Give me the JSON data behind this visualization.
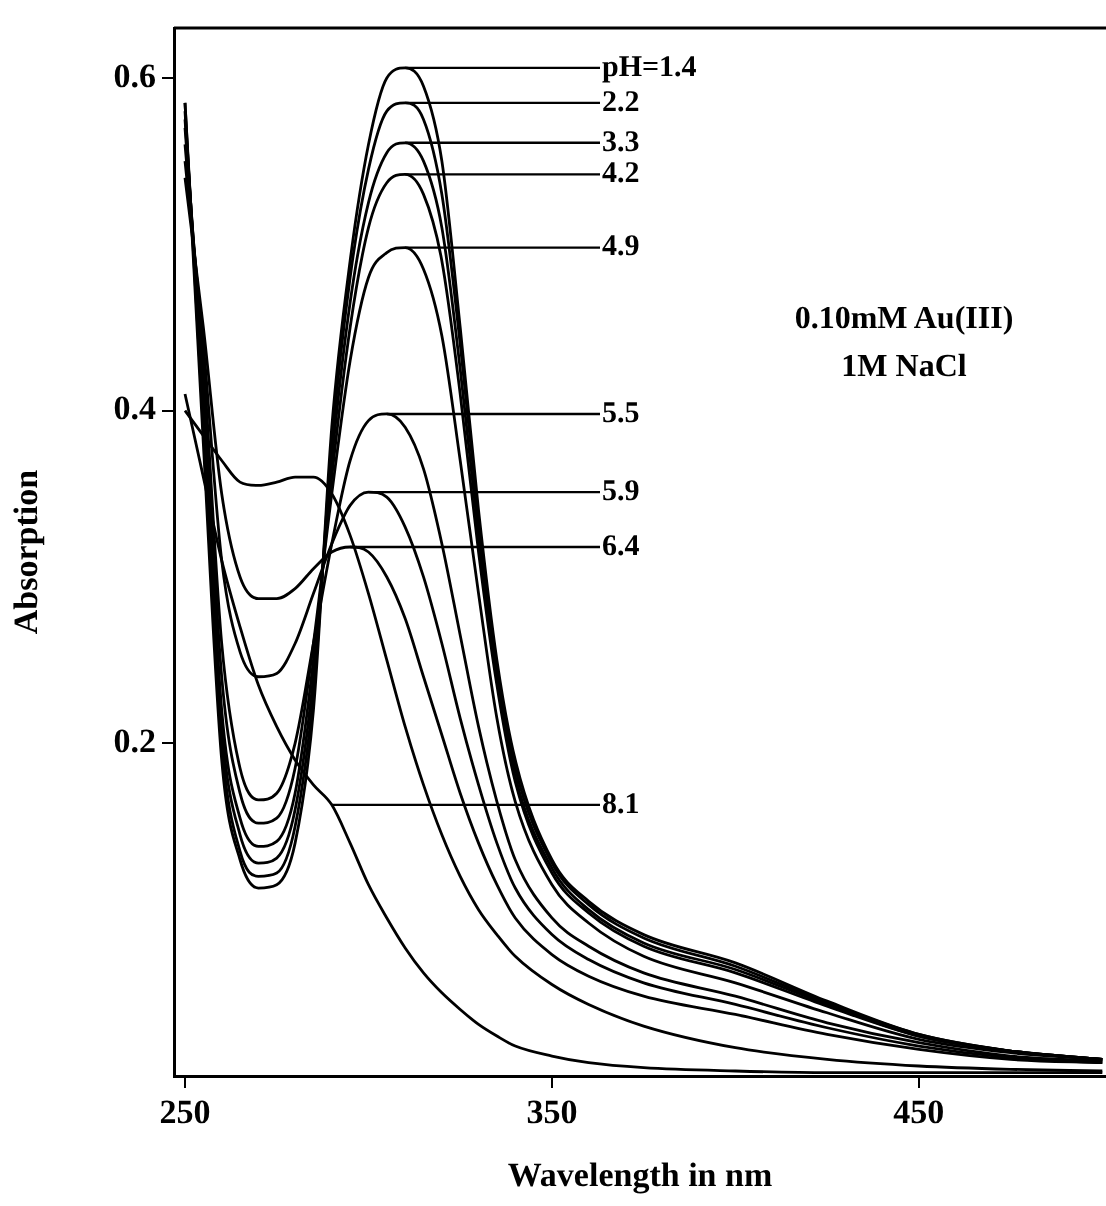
{
  "chart_data": {
    "type": "line",
    "xlabel": "Wavelength in nm",
    "ylabel": "Absorption",
    "x": [
      250,
      255,
      260,
      265,
      270,
      275,
      280,
      285,
      290,
      295,
      300,
      305,
      310,
      315,
      320,
      325,
      330,
      335,
      340,
      350,
      360,
      375,
      400,
      425,
      450,
      475,
      500
    ],
    "xlim": [
      247,
      501
    ],
    "ylim": [
      0,
      0.63
    ],
    "xticks": [
      250,
      350,
      450
    ],
    "yticks": [
      0.2,
      0.4,
      0.6
    ],
    "grid": false,
    "legend": false,
    "marker": "none",
    "line_style": "solid",
    "series": [
      {
        "color": "#000000",
        "values": [
          0.585,
          0.38,
          0.19,
          0.13,
          0.113,
          0.115,
          0.14,
          0.22,
          0.39,
          0.49,
          0.56,
          0.6,
          0.606,
          0.595,
          0.55,
          0.45,
          0.34,
          0.25,
          0.19,
          0.13,
          0.105,
          0.085,
          0.068,
          0.045,
          0.025,
          0.015,
          0.01
        ]
      },
      {
        "color": "#000000",
        "values": [
          0.585,
          0.39,
          0.2,
          0.135,
          0.12,
          0.122,
          0.15,
          0.23,
          0.38,
          0.48,
          0.545,
          0.58,
          0.585,
          0.575,
          0.53,
          0.44,
          0.335,
          0.245,
          0.185,
          0.128,
          0.103,
          0.083,
          0.066,
          0.044,
          0.025,
          0.015,
          0.01
        ]
      },
      {
        "color": "#000000",
        "values": [
          0.58,
          0.4,
          0.21,
          0.145,
          0.128,
          0.131,
          0.16,
          0.24,
          0.37,
          0.465,
          0.525,
          0.555,
          0.561,
          0.55,
          0.51,
          0.425,
          0.325,
          0.24,
          0.18,
          0.125,
          0.1,
          0.08,
          0.064,
          0.043,
          0.024,
          0.015,
          0.01
        ]
      },
      {
        "color": "#000000",
        "values": [
          0.575,
          0.41,
          0.22,
          0.155,
          0.138,
          0.141,
          0.17,
          0.25,
          0.36,
          0.45,
          0.51,
          0.537,
          0.542,
          0.53,
          0.49,
          0.41,
          0.315,
          0.235,
          0.177,
          0.122,
          0.098,
          0.078,
          0.062,
          0.042,
          0.024,
          0.015,
          0.01
        ]
      },
      {
        "color": "#000000",
        "values": [
          0.57,
          0.42,
          0.24,
          0.17,
          0.152,
          0.155,
          0.185,
          0.26,
          0.35,
          0.43,
          0.48,
          0.495,
          0.498,
          0.485,
          0.445,
          0.37,
          0.29,
          0.215,
          0.165,
          0.115,
          0.092,
          0.072,
          0.056,
          0.038,
          0.022,
          0.014,
          0.01
        ]
      },
      {
        "color": "#000000",
        "values": [
          0.56,
          0.43,
          0.26,
          0.185,
          0.166,
          0.17,
          0.2,
          0.26,
          0.32,
          0.37,
          0.394,
          0.398,
          0.39,
          0.365,
          0.32,
          0.265,
          0.21,
          0.165,
          0.13,
          0.095,
          0.078,
          0.062,
          0.048,
          0.032,
          0.02,
          0.012,
          0.009
        ]
      },
      {
        "color": "#000000",
        "values": [
          0.55,
          0.44,
          0.31,
          0.255,
          0.24,
          0.242,
          0.26,
          0.29,
          0.32,
          0.343,
          0.351,
          0.348,
          0.33,
          0.3,
          0.26,
          0.215,
          0.175,
          0.14,
          0.113,
          0.085,
          0.07,
          0.056,
          0.043,
          0.029,
          0.018,
          0.011,
          0.008
        ]
      },
      {
        "color": "#000000",
        "values": [
          0.54,
          0.45,
          0.35,
          0.3,
          0.287,
          0.287,
          0.293,
          0.305,
          0.315,
          0.318,
          0.315,
          0.3,
          0.275,
          0.24,
          0.205,
          0.17,
          0.14,
          0.115,
          0.095,
          0.073,
          0.06,
          0.048,
          0.037,
          0.025,
          0.016,
          0.01,
          0.008
        ]
      },
      {
        "color": "#000000",
        "values": [
          0.4,
          0.385,
          0.37,
          0.357,
          0.355,
          0.357,
          0.36,
          0.36,
          0.35,
          0.325,
          0.29,
          0.25,
          0.21,
          0.175,
          0.145,
          0.12,
          0.1,
          0.085,
          0.072,
          0.055,
          0.043,
          0.03,
          0.017,
          0.01,
          0.006,
          0.004,
          0.003
        ]
      },
      {
        "color": "#000000",
        "values": [
          0.41,
          0.36,
          0.31,
          0.27,
          0.235,
          0.21,
          0.19,
          0.175,
          0.163,
          0.14,
          0.115,
          0.095,
          0.077,
          0.062,
          0.05,
          0.04,
          0.031,
          0.024,
          0.018,
          0.012,
          0.008,
          0.005,
          0.003,
          0.002,
          0.002,
          0.002,
          0.002
        ]
      }
    ],
    "annotations": [
      {
        "text": "pH=1.4",
        "x": 310,
        "y": 0.606
      },
      {
        "text": "2.2",
        "x": 310,
        "y": 0.585
      },
      {
        "text": "3.3",
        "x": 310,
        "y": 0.561
      },
      {
        "text": "4.2",
        "x": 310,
        "y": 0.542
      },
      {
        "text": "4.9",
        "x": 310,
        "y": 0.498
      },
      {
        "text": "5.5",
        "x": 305,
        "y": 0.398
      },
      {
        "text": "5.9",
        "x": 300,
        "y": 0.351
      },
      {
        "text": "6.4",
        "x": 295,
        "y": 0.318
      },
      {
        "text": "8.1",
        "x": 290,
        "y": 0.163
      },
      "0.10mM Au(III)",
      "1M NaCl"
    ]
  }
}
